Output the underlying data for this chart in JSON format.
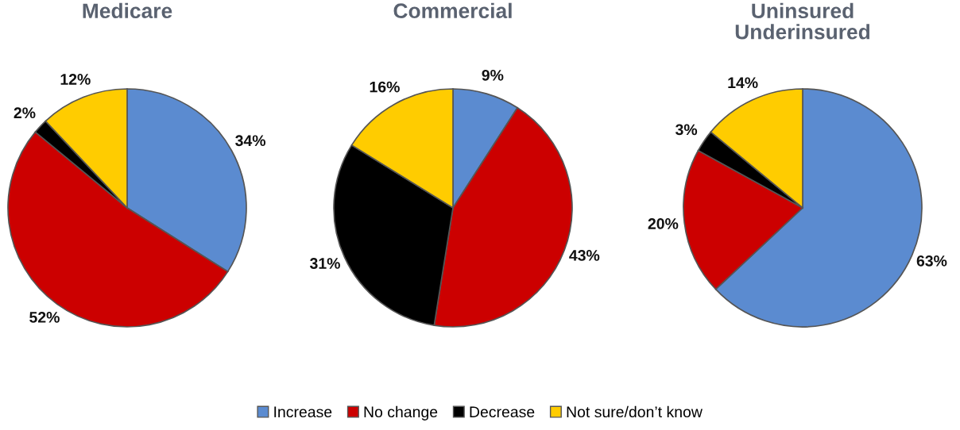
{
  "chart_data": [
    {
      "type": "pie",
      "title": "Medicare",
      "categories": [
        "Increase",
        "No change",
        "Decrease",
        "Not sure/don’t know"
      ],
      "values": [
        34,
        52,
        2,
        12
      ],
      "value_labels": [
        "34%",
        "52%",
        "2%",
        "12%"
      ],
      "colors": [
        "#5b8bd0",
        "#cc0000",
        "#000000",
        "#ffcc00"
      ],
      "legend": "bottom"
    },
    {
      "type": "pie",
      "title": "Commercial",
      "categories": [
        null,
        null,
        null,
        null
      ],
      "values": [
        9,
        43,
        31,
        16
      ],
      "value_labels": [
        "9%",
        "43%",
        "31%",
        "16%"
      ],
      "colors": [
        "#5b8bd0",
        "#cc0000",
        "#000000",
        "#ffcc00"
      ]
    },
    {
      "type": "pie",
      "title": "Uninsured\nUnderinsured",
      "categories": [
        null,
        null,
        null,
        null
      ],
      "values": [
        63,
        20,
        3,
        14
      ],
      "value_labels": [
        "63%",
        "20%",
        "3%",
        "14%"
      ],
      "colors": [
        "#5b8bd0",
        "#cc0000",
        "#000000",
        "#ffcc00"
      ]
    }
  ]
}
